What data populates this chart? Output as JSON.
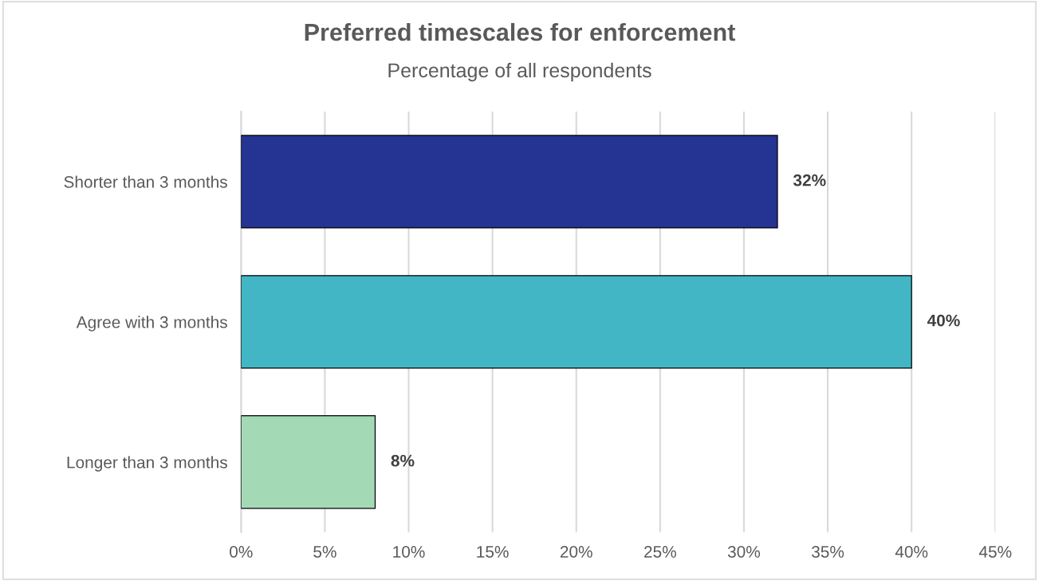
{
  "chart_data": {
    "type": "bar",
    "orientation": "horizontal",
    "title": "Preferred timescales for enforcement",
    "subtitle": "Percentage of all respondents",
    "categories": [
      "Shorter than 3 months",
      "Agree with 3 months",
      "Longer than 3 months"
    ],
    "values": [
      32,
      40,
      8
    ],
    "colors": [
      "#253393",
      "#42b6c5",
      "#a3dab5"
    ],
    "value_labels": [
      "32%",
      "40%",
      "8%"
    ],
    "xlim": [
      0,
      45
    ],
    "xticks": [
      {
        "value": 0,
        "label": "0%"
      },
      {
        "value": 5,
        "label": "5%"
      },
      {
        "value": 10,
        "label": "10%"
      },
      {
        "value": 15,
        "label": "15%"
      },
      {
        "value": 20,
        "label": "20%"
      },
      {
        "value": 25,
        "label": "25%"
      },
      {
        "value": 30,
        "label": "30%"
      },
      {
        "value": 35,
        "label": "35%"
      },
      {
        "value": 40,
        "label": "40%"
      },
      {
        "value": 45,
        "label": "45%"
      }
    ],
    "grid": "x",
    "legend": false
  }
}
